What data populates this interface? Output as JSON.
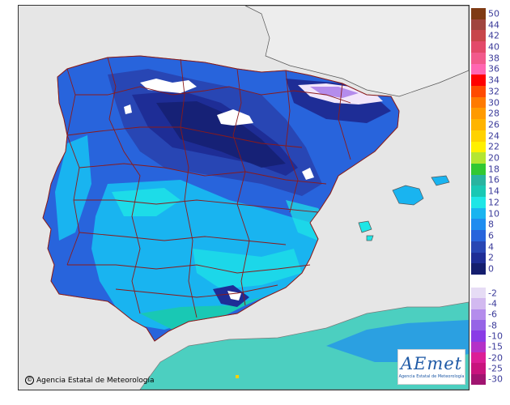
{
  "map": {
    "copyright_text": "Agencia Estatal de Meteorología",
    "copyright_symbol": "©",
    "logo_word": "AEmet",
    "logo_subtitle": "Agencia Estatal de Meteorología",
    "colors": {
      "sea": "#e6e6e6",
      "land_outside": "#ededed",
      "border": "#8b1a1a",
      "coast": "#555555"
    }
  },
  "legend": {
    "positive": [
      {
        "label": "50",
        "color": "#7f3a14"
      },
      {
        "label": "44",
        "color": "#a0453f"
      },
      {
        "label": "42",
        "color": "#c8464b"
      },
      {
        "label": "40",
        "color": "#e34a6a"
      },
      {
        "label": "38",
        "color": "#f25a8c"
      },
      {
        "label": "36",
        "color": "#ff66b2"
      },
      {
        "label": "34",
        "color": "#ff0000"
      },
      {
        "label": "32",
        "color": "#ff4a00"
      },
      {
        "label": "30",
        "color": "#ff7a00"
      },
      {
        "label": "28",
        "color": "#ff9a00"
      },
      {
        "label": "26",
        "color": "#ffb400"
      },
      {
        "label": "24",
        "color": "#ffd200"
      },
      {
        "label": "22",
        "color": "#fff000"
      },
      {
        "label": "20",
        "color": "#b4e632"
      },
      {
        "label": "18",
        "color": "#32c832"
      },
      {
        "label": "16",
        "color": "#28b4a0"
      },
      {
        "label": "14",
        "color": "#19c8b4"
      },
      {
        "label": "12",
        "color": "#1ee6e6"
      },
      {
        "label": "10",
        "color": "#19b4f0"
      },
      {
        "label": "8",
        "color": "#1e8cf0"
      },
      {
        "label": "6",
        "color": "#2864dc"
      },
      {
        "label": "4",
        "color": "#2846b4"
      },
      {
        "label": "2",
        "color": "#1e2d96"
      },
      {
        "label": "0",
        "color": "#141e6e"
      }
    ],
    "negative": [
      {
        "label": "-2",
        "color": "#e6dcf5"
      },
      {
        "label": "-4",
        "color": "#d2b9f0"
      },
      {
        "label": "-6",
        "color": "#b48cec"
      },
      {
        "label": "-8",
        "color": "#9664e6"
      },
      {
        "label": "-10",
        "color": "#8a3ce6"
      },
      {
        "label": "-15",
        "color": "#b432c8"
      },
      {
        "label": "-20",
        "color": "#dc1e96"
      },
      {
        "label": "-25",
        "color": "#c8147d"
      },
      {
        "label": "-30",
        "color": "#a01470"
      }
    ]
  }
}
